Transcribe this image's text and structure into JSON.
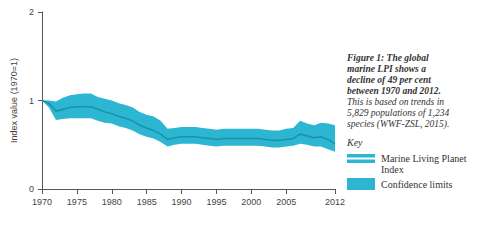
{
  "chart_data": {
    "type": "line",
    "x": [
      1970,
      1971,
      1972,
      1973,
      1974,
      1975,
      1976,
      1977,
      1978,
      1979,
      1980,
      1981,
      1982,
      1983,
      1984,
      1985,
      1986,
      1987,
      1988,
      1989,
      1990,
      1991,
      1992,
      1993,
      1994,
      1995,
      1996,
      1997,
      1998,
      1999,
      2000,
      2001,
      2002,
      2003,
      2004,
      2005,
      2006,
      2007,
      2008,
      2009,
      2010,
      2011,
      2012
    ],
    "series": [
      {
        "name": "Marine Living Planet Index",
        "color": "#1b92ad",
        "values": [
          1.0,
          0.97,
          0.88,
          0.9,
          0.92,
          0.93,
          0.93,
          0.93,
          0.9,
          0.87,
          0.85,
          0.82,
          0.8,
          0.77,
          0.72,
          0.69,
          0.66,
          0.62,
          0.56,
          0.58,
          0.59,
          0.59,
          0.59,
          0.58,
          0.57,
          0.56,
          0.57,
          0.57,
          0.57,
          0.57,
          0.57,
          0.57,
          0.56,
          0.55,
          0.55,
          0.56,
          0.57,
          0.62,
          0.6,
          0.58,
          0.59,
          0.56,
          0.51
        ]
      }
    ],
    "confidence_limits": {
      "name": "Confidence limits",
      "color": "#2cb6d1",
      "lower": [
        1.0,
        0.92,
        0.78,
        0.79,
        0.8,
        0.8,
        0.8,
        0.8,
        0.77,
        0.75,
        0.74,
        0.71,
        0.69,
        0.66,
        0.62,
        0.59,
        0.57,
        0.53,
        0.48,
        0.5,
        0.51,
        0.51,
        0.51,
        0.5,
        0.49,
        0.48,
        0.49,
        0.49,
        0.49,
        0.49,
        0.49,
        0.49,
        0.48,
        0.47,
        0.47,
        0.48,
        0.49,
        0.51,
        0.5,
        0.48,
        0.48,
        0.45,
        0.42
      ],
      "upper": [
        1.0,
        1.0,
        0.99,
        1.03,
        1.06,
        1.07,
        1.08,
        1.08,
        1.04,
        1.02,
        1.0,
        0.97,
        0.95,
        0.92,
        0.87,
        0.84,
        0.82,
        0.77,
        0.68,
        0.69,
        0.7,
        0.7,
        0.7,
        0.69,
        0.68,
        0.67,
        0.68,
        0.68,
        0.68,
        0.68,
        0.68,
        0.68,
        0.67,
        0.66,
        0.66,
        0.68,
        0.69,
        0.77,
        0.74,
        0.72,
        0.75,
        0.74,
        0.72
      ]
    },
    "xlim": [
      1970,
      2012
    ],
    "xticks": [
      1970,
      1975,
      1980,
      1985,
      1990,
      1995,
      2000,
      2005,
      2012
    ],
    "ylim": [
      0,
      2
    ],
    "yticks": [
      0,
      1,
      2
    ],
    "y_label": "Index value (1970=1)",
    "caption": {
      "bold_lines": [
        "Figure 1: The global",
        "marine LPI shows a",
        "decline of 49 per cent",
        "between 1970 and 2012."
      ],
      "italic_lines": [
        "This is based on trends in",
        "5,829 populations of 1,234",
        "species (WWF-ZSL, 2015)."
      ]
    },
    "legend_title": "Key",
    "legend": "right",
    "grid": false
  }
}
